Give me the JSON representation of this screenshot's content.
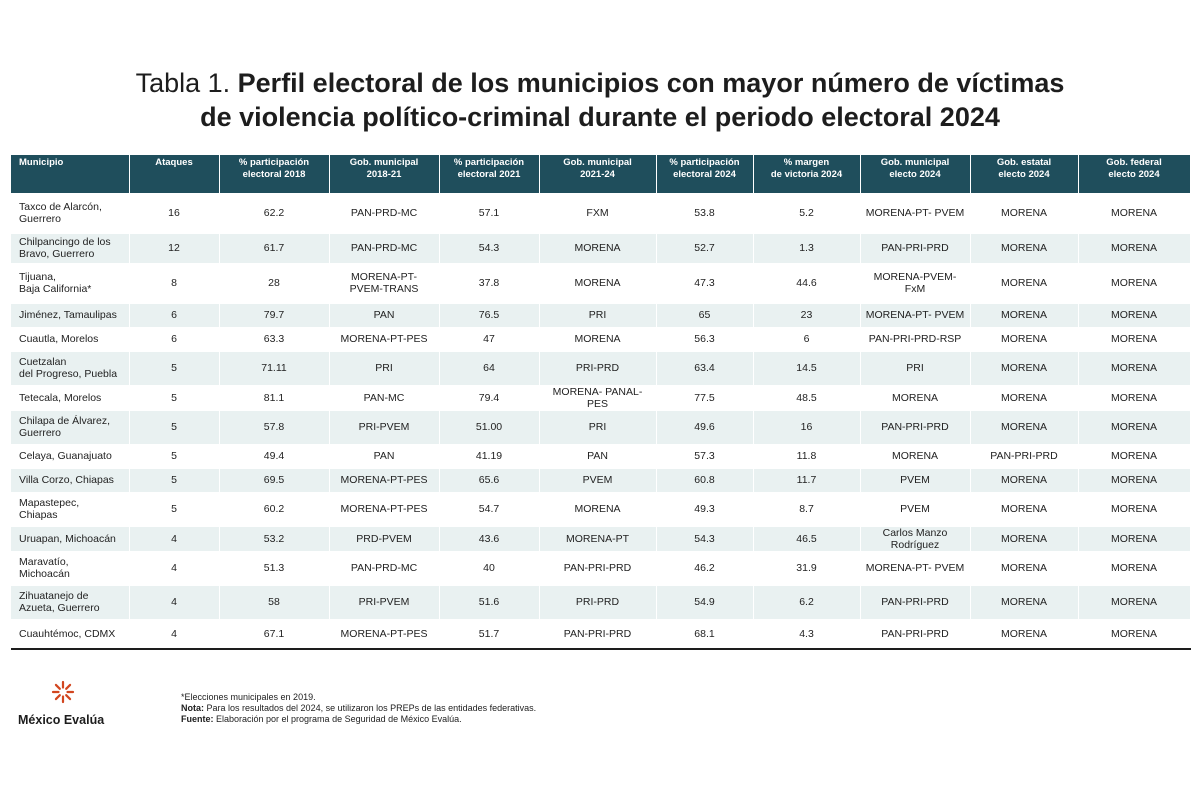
{
  "title": {
    "prefix": "Tabla 1.",
    "line1": "Perfil electoral de los municipios con mayor número de víctimas",
    "line2": "de violencia político-criminal durante el periodo electoral 2024"
  },
  "table": {
    "headers": [
      [
        "Municipio"
      ],
      [
        "Ataques"
      ],
      [
        "% participación",
        "electoral 2018"
      ],
      [
        "Gob. municipal",
        "2018-21"
      ],
      [
        "% participación",
        "electoral 2021"
      ],
      [
        "Gob. municipal",
        "2021-24"
      ],
      [
        "% participación",
        "electoral 2024"
      ],
      [
        "% margen",
        "de victoria 2024"
      ],
      [
        "Gob. municipal",
        "electo 2024"
      ],
      [
        "Gob. estatal",
        "electo 2024"
      ],
      [
        "Gob. federal",
        "electo 2024"
      ]
    ],
    "rows": [
      [
        [
          "Taxco de Alarcón,",
          "Guerrero"
        ],
        "16",
        "62.2",
        [
          "PAN-PRD-MC"
        ],
        "57.1",
        "FXM",
        "53.8",
        "5.2",
        "MORENA-PT- PVEM",
        "MORENA",
        "MORENA"
      ],
      [
        [
          "Chilpancingo de los",
          "Bravo, Guerrero"
        ],
        "12",
        "61.7",
        [
          "PAN-PRD-MC"
        ],
        "54.3",
        "MORENA",
        "52.7",
        "1.3",
        "PAN-PRI-PRD",
        "MORENA",
        "MORENA"
      ],
      [
        [
          "Tijuana,",
          "Baja California*"
        ],
        "8",
        "28",
        [
          "MORENA-PT-",
          "PVEM-TRANS"
        ],
        "37.8",
        "MORENA",
        "47.3",
        "44.6",
        "MORENA-PVEM- FxM",
        "MORENA",
        "MORENA"
      ],
      [
        [
          "Jiménez, Tamaulipas"
        ],
        "6",
        "79.7",
        [
          "PAN"
        ],
        "76.5",
        "PRI",
        "65",
        "23",
        "MORENA-PT- PVEM",
        "MORENA",
        "MORENA"
      ],
      [
        [
          "Cuautla, Morelos"
        ],
        "6",
        "63.3",
        [
          "MORENA-PT-PES"
        ],
        "47",
        "MORENA",
        "56.3",
        "6",
        "PAN-PRI-PRD-RSP",
        "MORENA",
        "MORENA"
      ],
      [
        [
          "Cuetzalan",
          "del Progreso, Puebla"
        ],
        "5",
        "71.11",
        [
          "PRI"
        ],
        "64",
        "PRI-PRD",
        "63.4",
        "14.5",
        "PRI",
        "MORENA",
        "MORENA"
      ],
      [
        [
          "Tetecala, Morelos"
        ],
        "5",
        "81.1",
        [
          "PAN-MC"
        ],
        "79.4",
        "MORENA- PANAL- PES",
        "77.5",
        "48.5",
        "MORENA",
        "MORENA",
        "MORENA"
      ],
      [
        [
          "Chilapa de Álvarez,",
          "Guerrero"
        ],
        "5",
        "57.8",
        [
          "PRI-PVEM"
        ],
        "51.00",
        "PRI",
        "49.6",
        "16",
        "PAN-PRI-PRD",
        "MORENA",
        "MORENA"
      ],
      [
        [
          "Celaya, Guanajuato"
        ],
        "5",
        "49.4",
        [
          "PAN"
        ],
        "41.19",
        "PAN",
        "57.3",
        "11.8",
        "MORENA",
        "PAN-PRI-PRD",
        "MORENA"
      ],
      [
        [
          "Villa Corzo, Chiapas"
        ],
        "5",
        "69.5",
        [
          "MORENA-PT-PES"
        ],
        "65.6",
        "PVEM",
        "60.8",
        "11.7",
        "PVEM",
        "MORENA",
        "MORENA"
      ],
      [
        [
          "Mapastepec,",
          "Chiapas"
        ],
        "5",
        "60.2",
        [
          "MORENA-PT-PES"
        ],
        "54.7",
        "MORENA",
        "49.3",
        "8.7",
        "PVEM",
        "MORENA",
        "MORENA"
      ],
      [
        [
          "Uruapan, Michoacán"
        ],
        "4",
        "53.2",
        [
          "PRD-PVEM"
        ],
        "43.6",
        "MORENA-PT",
        "54.3",
        "46.5",
        "Carlos Manzo Rodríguez",
        "MORENA",
        "MORENA"
      ],
      [
        [
          "Maravatío,",
          "Michoacán"
        ],
        "4",
        "51.3",
        [
          "PAN-PRD-MC"
        ],
        "40",
        "PAN-PRI-PRD",
        "46.2",
        "31.9",
        "MORENA-PT- PVEM",
        "MORENA",
        "MORENA"
      ],
      [
        [
          "Zihuatanejo de",
          "Azueta, Guerrero"
        ],
        "4",
        "58",
        [
          "PRI-PVEM"
        ],
        "51.6",
        "PRI-PRD",
        "54.9",
        "6.2",
        "PAN-PRI-PRD",
        "MORENA",
        "MORENA"
      ],
      [
        [
          "Cuauhtémoc, CDMX"
        ],
        "4",
        "67.1",
        [
          "MORENA-PT-PES"
        ],
        "51.7",
        "PAN-PRI-PRD",
        "68.1",
        "4.3",
        "PAN-PRI-PRD",
        "MORENA",
        "MORENA"
      ]
    ]
  },
  "logo": {
    "text": "México Evalúa",
    "icon": "mexico-evalua-logo-icon",
    "color": "#d2461f"
  },
  "notes": {
    "line1": "*Elecciones municipales en 2019.",
    "nota_label": "Nota:",
    "nota_text": " Para los resultados del 2024, se utilizaron los PREPs de las entidades federativas.",
    "fuente_label": "Fuente:",
    "fuente_text": " Elaboración por el programa de Seguridad de México Evalúa."
  },
  "colors": {
    "header_bg": "#1f4e5c",
    "stripe": "#e9f1f1"
  }
}
